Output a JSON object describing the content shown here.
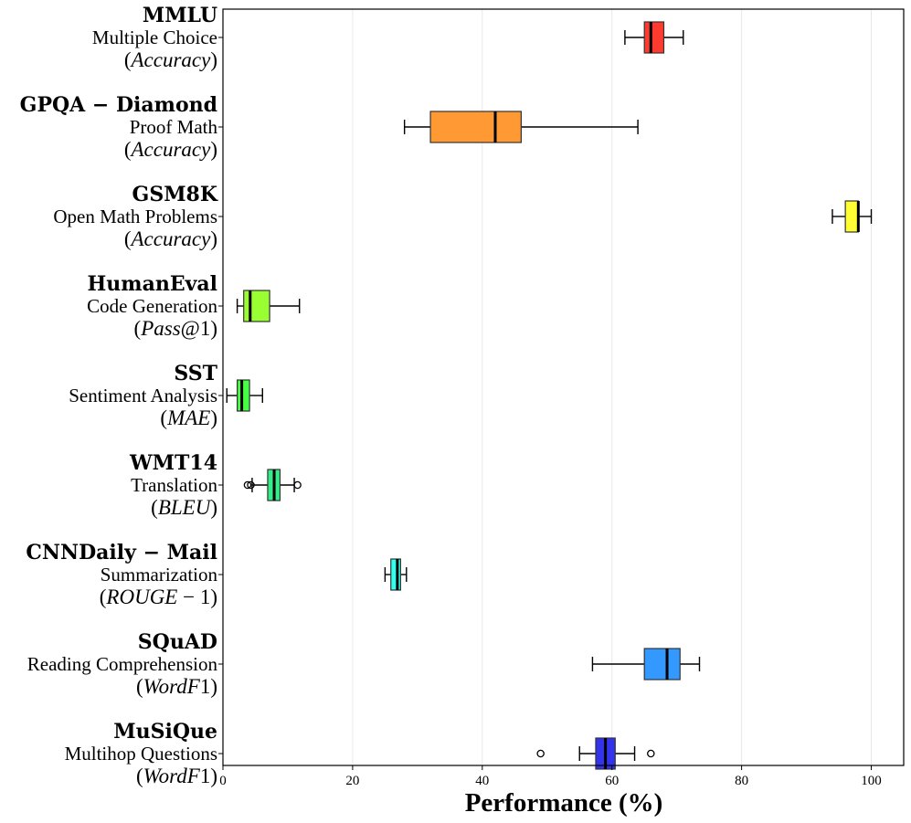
{
  "chart_data": {
    "type": "boxplot",
    "orientation": "horizontal",
    "xlabel": "Performance (%)",
    "xlim": [
      0,
      105
    ],
    "xticks": [
      0,
      20,
      40,
      60,
      80,
      100
    ],
    "xtick_labels": [
      "0",
      "20",
      "40",
      "60",
      "80",
      "100"
    ],
    "grid": "vertical",
    "categories": [
      {
        "title": "MMLU",
        "task": "Multiple Choice",
        "metric_pre": "(",
        "metric": "Accuracy",
        "metric_post": ")",
        "color": "#ff3b30",
        "whisker_low": 62,
        "q1": 65,
        "median": 66,
        "q3": 68,
        "whisker_high": 71,
        "outliers": []
      },
      {
        "title": "GPQA − Diamond",
        "task": "Proof Math",
        "metric_pre": "(",
        "metric": "Accuracy",
        "metric_post": ")",
        "color": "#ff9933",
        "whisker_low": 28,
        "q1": 32,
        "median": 42,
        "q3": 46,
        "whisker_high": 64,
        "outliers": []
      },
      {
        "title": "GSM8K",
        "task": "Open Math Problems",
        "metric_pre": "(",
        "metric": "Accuracy",
        "metric_post": ")",
        "color": "#ffff33",
        "whisker_low": 94,
        "q1": 96,
        "median": 98,
        "q3": 98,
        "whisker_high": 100,
        "outliers": []
      },
      {
        "title": "HumanEval",
        "task": "Code Generation",
        "metric_pre": "(",
        "metric": "Pass",
        "metric_post": "@1)",
        "color": "#99ff33",
        "whisker_low": 2.2,
        "q1": 3.2,
        "median": 4.2,
        "q3": 7.2,
        "whisker_high": 11.8,
        "outliers": []
      },
      {
        "title": "SST",
        "task": "Sentiment Analysis",
        "metric_pre": "(",
        "metric": "MAE",
        "metric_post": ")",
        "color": "#44ff44",
        "whisker_low": 0.6,
        "q1": 2.2,
        "median": 2.9,
        "q3": 4.1,
        "whisker_high": 6.1,
        "outliers": []
      },
      {
        "title": "WMT14",
        "task": "Translation",
        "metric_pre": "(",
        "metric": "BLEU",
        "metric_post": ")",
        "color": "#33ee88",
        "whisker_low": 4.5,
        "q1": 6.9,
        "median": 7.9,
        "q3": 8.8,
        "whisker_high": 11,
        "outliers": [
          3.8,
          4.3,
          11.5
        ]
      },
      {
        "title": "CNNDaily − Mail",
        "task": "Summarization",
        "metric_pre": "(",
        "metric": "ROUGE",
        "metric_post": " − 1)",
        "color": "#33ffee",
        "whisker_low": 25,
        "q1": 25.9,
        "median": 26.9,
        "q3": 27.4,
        "whisker_high": 28.3,
        "outliers": []
      },
      {
        "title": "SQuAD",
        "task": "Reading Comprehension",
        "metric_pre": "(",
        "metric": "WordF",
        "metric_post": "1)",
        "color": "#3399ff",
        "whisker_low": 57,
        "q1": 65,
        "median": 68.5,
        "q3": 70.5,
        "whisker_high": 73.5,
        "outliers": []
      },
      {
        "title": "MuSiQue",
        "task": "Multihop Questions",
        "metric_pre": "(",
        "metric": "WordF",
        "metric_post": "1)",
        "color": "#3333ee",
        "whisker_low": 55,
        "q1": 57.5,
        "median": 59,
        "q3": 60.5,
        "whisker_high": 63.5,
        "outliers": [
          49,
          66
        ]
      }
    ]
  }
}
